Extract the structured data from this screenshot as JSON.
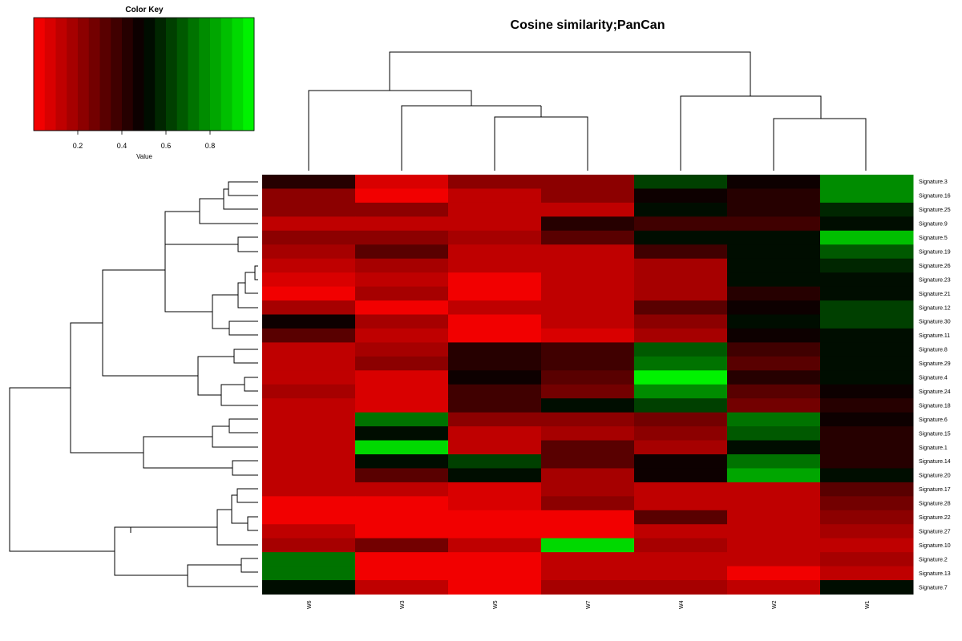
{
  "chart_data": {
    "type": "heatmap",
    "title": "Cosine similarity;PanCan",
    "columns": [
      "W6",
      "W3",
      "W5",
      "W7",
      "W4",
      "W2",
      "W1"
    ],
    "rows": [
      "Signature.3",
      "Signature.16",
      "Signature.25",
      "Signature.9",
      "Signature.5",
      "Signature.19",
      "Signature.26",
      "Signature.23",
      "Signature.21",
      "Signature.12",
      "Signature.30",
      "Signature.11",
      "Signature.8",
      "Signature.29",
      "Signature.4",
      "Signature.24",
      "Signature.18",
      "Signature.6",
      "Signature.15",
      "Signature.1",
      "Signature.14",
      "Signature.20",
      "Signature.17",
      "Signature.28",
      "Signature.22",
      "Signature.27",
      "Signature.10",
      "Signature.2",
      "Signature.13",
      "Signature.7"
    ],
    "values": [
      [
        0.42,
        0.06,
        0.22,
        0.22,
        0.62,
        0.46,
        0.75
      ],
      [
        0.22,
        0.02,
        0.14,
        0.22,
        0.46,
        0.42,
        0.75
      ],
      [
        0.22,
        0.22,
        0.14,
        0.14,
        0.5,
        0.42,
        0.58
      ],
      [
        0.14,
        0.14,
        0.14,
        0.42,
        0.38,
        0.38,
        0.5
      ],
      [
        0.22,
        0.22,
        0.18,
        0.3,
        0.5,
        0.54,
        0.85
      ],
      [
        0.18,
        0.3,
        0.14,
        0.14,
        0.38,
        0.54,
        0.66
      ],
      [
        0.14,
        0.18,
        0.1,
        0.14,
        0.18,
        0.5,
        0.58
      ],
      [
        0.06,
        0.14,
        0.02,
        0.1,
        0.18,
        0.5,
        0.54
      ],
      [
        0.02,
        0.18,
        0.02,
        0.1,
        0.18,
        0.42,
        0.5
      ],
      [
        0.18,
        0.02,
        0.1,
        0.14,
        0.3,
        0.46,
        0.62
      ],
      [
        0.46,
        0.18,
        0.02,
        0.14,
        0.22,
        0.5,
        0.62
      ],
      [
        0.3,
        0.1,
        0.02,
        0.06,
        0.18,
        0.46,
        0.54
      ],
      [
        0.14,
        0.18,
        0.42,
        0.38,
        0.66,
        0.38,
        0.54
      ],
      [
        0.14,
        0.22,
        0.42,
        0.38,
        0.7,
        0.34,
        0.5
      ],
      [
        0.14,
        0.06,
        0.46,
        0.3,
        0.98,
        0.42,
        0.54
      ],
      [
        0.18,
        0.06,
        0.38,
        0.26,
        0.78,
        0.3,
        0.46
      ],
      [
        0.14,
        0.06,
        0.38,
        0.5,
        0.62,
        0.26,
        0.42
      ],
      [
        0.1,
        0.7,
        0.22,
        0.22,
        0.26,
        0.7,
        0.46
      ],
      [
        0.1,
        0.54,
        0.14,
        0.18,
        0.22,
        0.66,
        0.42
      ],
      [
        0.14,
        0.9,
        0.1,
        0.3,
        0.18,
        0.5,
        0.42
      ],
      [
        0.1,
        0.5,
        0.62,
        0.34,
        0.46,
        0.7,
        0.42
      ],
      [
        0.1,
        0.3,
        0.5,
        0.18,
        0.46,
        0.82,
        0.54
      ],
      [
        0.1,
        0.14,
        0.06,
        0.18,
        0.1,
        0.14,
        0.3
      ],
      [
        0.02,
        0.02,
        0.06,
        0.22,
        0.1,
        0.14,
        0.26
      ],
      [
        0.02,
        0.02,
        0.02,
        0.02,
        0.34,
        0.1,
        0.22
      ],
      [
        0.1,
        0.02,
        0.02,
        0.02,
        0.14,
        0.1,
        0.18
      ],
      [
        0.18,
        0.26,
        0.1,
        0.94,
        0.18,
        0.14,
        0.1
      ],
      [
        0.7,
        0.02,
        0.02,
        0.14,
        0.14,
        0.1,
        0.18
      ],
      [
        0.7,
        0.02,
        0.02,
        0.1,
        0.14,
        0.02,
        0.1
      ],
      [
        0.5,
        0.14,
        0.02,
        0.18,
        0.18,
        0.14,
        0.5
      ]
    ],
    "color_scale": {
      "low": "#ff0000",
      "mid": "#000000",
      "high": "#00ff00",
      "range": [
        0,
        1
      ],
      "n_colors": 20
    },
    "color_key": {
      "title": "Color Key",
      "xlabel": "Value",
      "ticks": [
        "0.2",
        "0.4",
        "0.6",
        "0.8"
      ],
      "tick_values": [
        0.2,
        0.4,
        0.6,
        0.8
      ]
    },
    "column_dendrogram": {
      "order": [
        "W6",
        "W3",
        "W5",
        "W7",
        "W4",
        "W2",
        "W1"
      ]
    },
    "row_dendrogram": {
      "order": "rows"
    }
  }
}
